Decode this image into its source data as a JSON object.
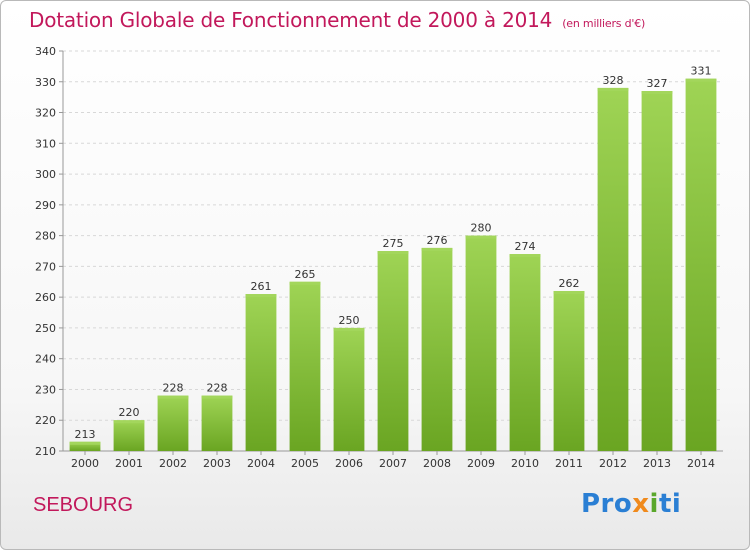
{
  "header": {
    "title": "Dotation Globale de Fonctionnement de 2000 à 2014",
    "unit": "(en milliers d'€)"
  },
  "footer": {
    "commune": "SEBOURG",
    "logo": {
      "part1": "Pro",
      "part2": "x",
      "part3": "i",
      "part4": "ti"
    }
  },
  "chart_data": {
    "type": "bar",
    "title": "Dotation Globale de Fonctionnement de 2000 à 2014",
    "xlabel": "",
    "ylabel": "",
    "categories": [
      "2000",
      "2001",
      "2002",
      "2003",
      "2004",
      "2005",
      "2006",
      "2007",
      "2008",
      "2009",
      "2010",
      "2011",
      "2012",
      "2013",
      "2014"
    ],
    "values": [
      213,
      220,
      228,
      228,
      261,
      265,
      250,
      275,
      276,
      280,
      274,
      262,
      328,
      327,
      331
    ],
    "ylim": [
      210,
      340
    ],
    "yticks": [
      210,
      220,
      230,
      240,
      250,
      260,
      270,
      280,
      290,
      300,
      310,
      320,
      330,
      340
    ],
    "grid": true,
    "bar_color": "#7cb832",
    "bar_color_light": "#a3d65c",
    "grid_color": "#d8d8d8"
  }
}
